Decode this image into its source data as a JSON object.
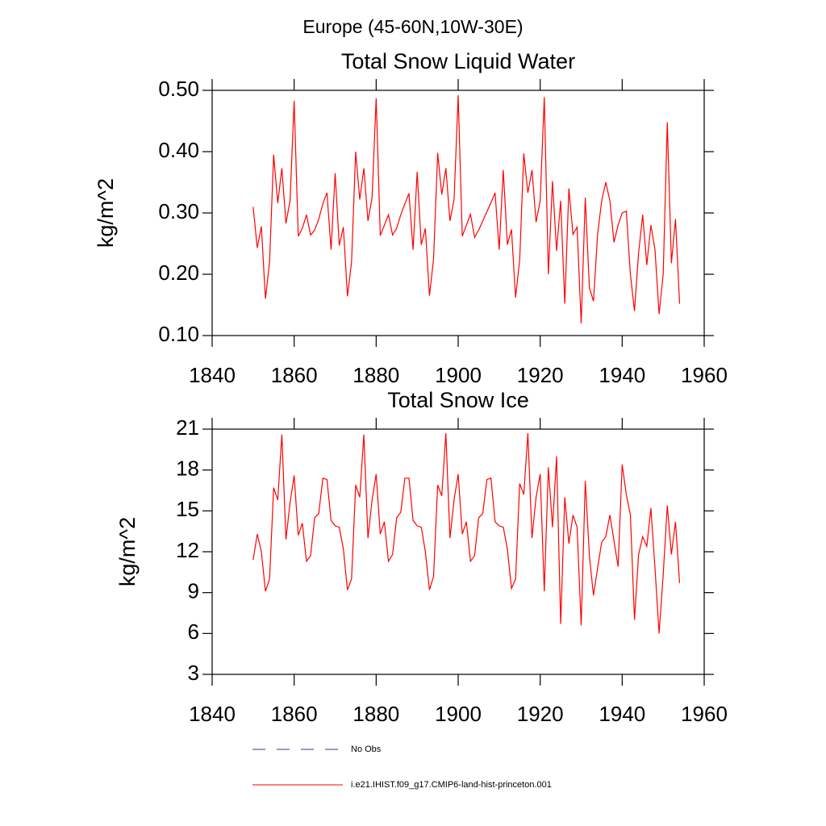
{
  "title": "Europe (45-60N,10W-30E)",
  "legend": [
    {
      "label": "No Obs",
      "color": "#2b3a8c",
      "dash": "dashed"
    },
    {
      "label": "i.e21.IHIST.f09_g17.CMIP6-land-hist-princeton.001",
      "color": "#ff0000",
      "dash": "solid"
    }
  ],
  "chart_data": [
    {
      "type": "line",
      "title": "Total Snow Liquid Water",
      "ylabel": "kg/m^2",
      "color": "#ff0000",
      "xlim": [
        1840,
        1960
      ],
      "xticks": [
        1840,
        1860,
        1880,
        1900,
        1920,
        1940,
        1960
      ],
      "ylim": [
        0.1,
        0.5
      ],
      "yticks": [
        {
          "value": 0.1,
          "label": "0.10"
        },
        {
          "value": 0.2,
          "label": "0.20"
        },
        {
          "value": 0.3,
          "label": "0.30"
        },
        {
          "value": 0.4,
          "label": "0.40"
        },
        {
          "value": 0.5,
          "label": "0.50"
        }
      ],
      "x": [
        1850,
        1851,
        1852,
        1853,
        1854,
        1855,
        1856,
        1857,
        1858,
        1859,
        1860,
        1861,
        1862,
        1863,
        1864,
        1865,
        1866,
        1867,
        1868,
        1869,
        1870,
        1871,
        1872,
        1873,
        1874,
        1875,
        1876,
        1877,
        1878,
        1879,
        1880,
        1881,
        1882,
        1883,
        1884,
        1885,
        1886,
        1887,
        1888,
        1889,
        1890,
        1891,
        1892,
        1893,
        1894,
        1895,
        1896,
        1897,
        1898,
        1899,
        1900,
        1901,
        1902,
        1903,
        1904,
        1905,
        1906,
        1907,
        1908,
        1909,
        1910,
        1911,
        1912,
        1913,
        1914,
        1915,
        1916,
        1917,
        1918,
        1919,
        1920,
        1921,
        1922,
        1923,
        1924,
        1925,
        1926,
        1927,
        1928,
        1929,
        1930,
        1931,
        1932,
        1933,
        1934,
        1935,
        1936,
        1937,
        1938,
        1939,
        1940,
        1941,
        1942,
        1943,
        1944,
        1945,
        1946,
        1947,
        1948,
        1949,
        1950,
        1951,
        1952,
        1953,
        1954
      ],
      "values": [
        0.31,
        0.243,
        0.278,
        0.16,
        0.22,
        0.395,
        0.316,
        0.373,
        0.283,
        0.32,
        0.483,
        0.262,
        0.275,
        0.297,
        0.264,
        0.272,
        0.29,
        0.315,
        0.333,
        0.24,
        0.365,
        0.247,
        0.277,
        0.164,
        0.22,
        0.4,
        0.322,
        0.373,
        0.287,
        0.325,
        0.487,
        0.263,
        0.28,
        0.297,
        0.264,
        0.275,
        0.297,
        0.315,
        0.332,
        0.24,
        0.367,
        0.248,
        0.275,
        0.165,
        0.225,
        0.398,
        0.33,
        0.373,
        0.287,
        0.322,
        0.492,
        0.262,
        0.28,
        0.298,
        0.26,
        0.272,
        0.287,
        0.302,
        0.317,
        0.333,
        0.24,
        0.37,
        0.248,
        0.273,
        0.162,
        0.223,
        0.397,
        0.333,
        0.37,
        0.285,
        0.32,
        0.489,
        0.2,
        0.352,
        0.238,
        0.32,
        0.152,
        0.34,
        0.265,
        0.277,
        0.12,
        0.325,
        0.178,
        0.156,
        0.265,
        0.32,
        0.35,
        0.32,
        0.252,
        0.28,
        0.3,
        0.303,
        0.2,
        0.14,
        0.235,
        0.297,
        0.215,
        0.28,
        0.24,
        0.135,
        0.2,
        0.448,
        0.218,
        0.29,
        0.152
      ]
    },
    {
      "type": "line",
      "title": "Total Snow Ice",
      "ylabel": "kg/m^2",
      "color": "#ff0000",
      "xlim": [
        1840,
        1960
      ],
      "xticks": [
        1840,
        1860,
        1880,
        1900,
        1920,
        1940,
        1960
      ],
      "ylim": [
        3,
        21
      ],
      "yticks": [
        3,
        6,
        9,
        12,
        15,
        18,
        21
      ],
      "x": [
        1850,
        1851,
        1852,
        1853,
        1854,
        1855,
        1856,
        1857,
        1858,
        1859,
        1860,
        1861,
        1862,
        1863,
        1864,
        1865,
        1866,
        1867,
        1868,
        1869,
        1870,
        1871,
        1872,
        1873,
        1874,
        1875,
        1876,
        1877,
        1878,
        1879,
        1880,
        1881,
        1882,
        1883,
        1884,
        1885,
        1886,
        1887,
        1888,
        1889,
        1890,
        1891,
        1892,
        1893,
        1894,
        1895,
        1896,
        1897,
        1898,
        1899,
        1900,
        1901,
        1902,
        1903,
        1904,
        1905,
        1906,
        1907,
        1908,
        1909,
        1910,
        1911,
        1912,
        1913,
        1914,
        1915,
        1916,
        1917,
        1918,
        1919,
        1920,
        1921,
        1922,
        1923,
        1924,
        1925,
        1926,
        1927,
        1928,
        1929,
        1930,
        1931,
        1932,
        1933,
        1934,
        1935,
        1936,
        1937,
        1938,
        1939,
        1940,
        1941,
        1942,
        1943,
        1944,
        1945,
        1946,
        1947,
        1948,
        1949,
        1950,
        1951,
        1952,
        1953,
        1954
      ],
      "values": [
        11.4,
        13.3,
        12.0,
        9.1,
        10.0,
        16.7,
        15.8,
        20.6,
        12.9,
        15.6,
        17.6,
        13.2,
        14.1,
        11.3,
        11.7,
        14.5,
        14.8,
        17.4,
        17.3,
        14.3,
        13.9,
        13.8,
        12.2,
        9.2,
        10.0,
        16.9,
        16.0,
        20.6,
        13.0,
        15.8,
        17.7,
        13.3,
        14.2,
        11.3,
        11.8,
        14.5,
        14.9,
        17.4,
        17.4,
        14.3,
        13.9,
        13.8,
        12.0,
        9.2,
        10.2,
        16.9,
        16.1,
        20.7,
        13.0,
        15.8,
        17.7,
        13.3,
        14.2,
        11.3,
        11.7,
        14.5,
        14.8,
        17.3,
        17.4,
        14.2,
        13.9,
        13.8,
        12.2,
        9.3,
        10.0,
        17.0,
        16.2,
        20.7,
        13.0,
        16.0,
        17.7,
        9.1,
        18.2,
        13.8,
        19.0,
        6.7,
        16.0,
        12.6,
        14.7,
        13.8,
        6.6,
        17.2,
        11.7,
        8.8,
        10.8,
        12.7,
        13.1,
        14.7,
        12.8,
        10.9,
        18.4,
        16.2,
        14.7,
        7.0,
        11.8,
        13.1,
        12.4,
        15.2,
        10.8,
        6.0,
        10.3,
        15.4,
        11.8,
        14.2,
        9.7
      ]
    }
  ]
}
